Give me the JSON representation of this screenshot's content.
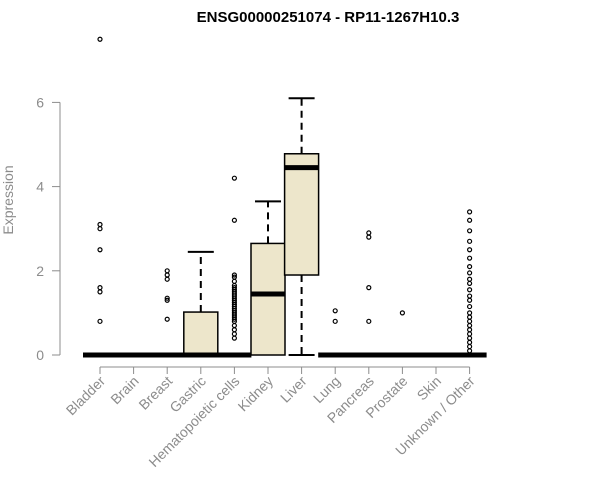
{
  "chart_data": {
    "type": "boxplot",
    "title": "ENSG00000251074 - RP11-1267H10.3",
    "ylabel": "Expression",
    "xlabel": "",
    "ylim": [
      0,
      7.5
    ],
    "yticks": [
      0,
      2,
      4,
      6
    ],
    "box_fill": "#ede6cb",
    "line_color": "#000000",
    "categories": [
      "Bladder",
      "Brain",
      "Breast",
      "Gastric",
      "Hematopoietic cells",
      "Kidney",
      "Liver",
      "Lung",
      "Pancreas",
      "Prostate",
      "Skin",
      "Unknown / Other"
    ],
    "boxes": [
      {
        "min": 0,
        "q1": 0,
        "median": 0,
        "q3": 0,
        "max": 0,
        "outliers": [
          7.5,
          3.1,
          3.0,
          2.5,
          1.6,
          1.5,
          0.8
        ]
      },
      {
        "min": 0,
        "q1": 0,
        "median": 0,
        "q3": 0,
        "max": 0,
        "outliers": []
      },
      {
        "min": 0,
        "q1": 0,
        "median": 0,
        "q3": 0,
        "max": 0,
        "outliers": [
          2.0,
          1.9,
          1.8,
          1.35,
          1.3,
          0.85
        ]
      },
      {
        "min": 0,
        "q1": 0,
        "median": 0,
        "q3": 1.02,
        "max": 2.45,
        "outliers": []
      },
      {
        "min": 0,
        "q1": 0,
        "median": 0,
        "q3": 0,
        "max": 0,
        "outliers": [
          4.2,
          3.2,
          1.9,
          1.85,
          1.75,
          1.65,
          1.6,
          1.55,
          1.5,
          1.45,
          1.4,
          1.35,
          1.3,
          1.25,
          1.2,
          1.15,
          1.1,
          1.05,
          1.0,
          0.95,
          0.9,
          0.85,
          0.8,
          0.7,
          0.6,
          0.5,
          0.4
        ]
      },
      {
        "min": 0,
        "q1": 0,
        "median": 1.45,
        "q3": 2.65,
        "max": 3.65,
        "outliers": []
      },
      {
        "min": 0,
        "q1": 1.9,
        "median": 4.45,
        "q3": 4.78,
        "max": 6.1,
        "outliers": []
      },
      {
        "min": 0,
        "q1": 0,
        "median": 0,
        "q3": 0,
        "max": 0,
        "outliers": [
          1.05,
          0.8
        ]
      },
      {
        "min": 0,
        "q1": 0,
        "median": 0,
        "q3": 0,
        "max": 0,
        "outliers": [
          2.9,
          2.8,
          1.6,
          0.8
        ]
      },
      {
        "min": 0,
        "q1": 0,
        "median": 0,
        "q3": 0,
        "max": 0,
        "outliers": [
          1.0
        ]
      },
      {
        "min": 0,
        "q1": 0,
        "median": 0,
        "q3": 0,
        "max": 0,
        "outliers": []
      },
      {
        "min": 0,
        "q1": 0,
        "median": 0,
        "q3": 0,
        "max": 0,
        "outliers": [
          3.4,
          3.2,
          2.95,
          2.7,
          2.5,
          2.3,
          2.1,
          1.95,
          1.8,
          1.7,
          1.55,
          1.4,
          1.3,
          1.15,
          1.0,
          0.9,
          0.8,
          0.7,
          0.6,
          0.5,
          0.4,
          0.3,
          0.2,
          0.1
        ]
      }
    ]
  }
}
